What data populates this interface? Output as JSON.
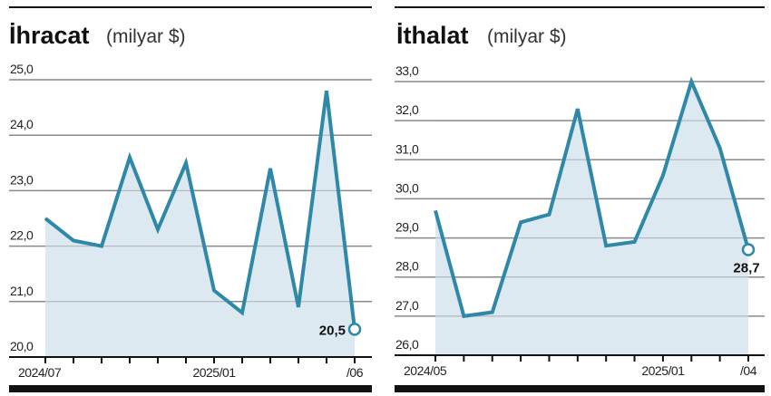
{
  "colors": {
    "line": "#2f88a8",
    "fill": "#d9e7ef",
    "grid": "#8a8a8a",
    "rule": "#111111"
  },
  "chart_data": [
    {
      "type": "area",
      "title": "İhracat",
      "unit": "(milyar $)",
      "x": [
        "2024/07",
        "2024/08",
        "2024/09",
        "2024/10",
        "2024/11",
        "2024/12",
        "2025/01",
        "2025/02",
        "2025/03",
        "2025/04",
        "2025/05",
        "2025/06"
      ],
      "values": [
        22.5,
        22.1,
        22.0,
        23.6,
        22.3,
        23.5,
        21.2,
        20.8,
        23.4,
        20.9,
        24.8,
        20.5
      ],
      "ylim": [
        20,
        25
      ],
      "yticks": [
        "20,0",
        "21,0",
        "22,0",
        "23,0",
        "24,0",
        "25,0"
      ],
      "xtick_labels": [
        {
          "index": 0,
          "label": "2024/07"
        },
        {
          "index": 6,
          "label": "2025/01"
        },
        {
          "index": 11,
          "label": "/06"
        }
      ],
      "last_label": "20,5",
      "grid": true
    },
    {
      "type": "area",
      "title": "İthalat",
      "unit": "(milyar $)",
      "x": [
        "2024/05",
        "2024/06",
        "2024/07",
        "2024/08",
        "2024/09",
        "2024/10",
        "2024/11",
        "2024/12",
        "2025/01",
        "2025/02",
        "2025/03",
        "2025/04"
      ],
      "values": [
        29.7,
        27.0,
        27.1,
        29.4,
        29.6,
        32.3,
        28.8,
        28.9,
        30.6,
        33.0,
        31.3,
        28.7
      ],
      "ylim": [
        26,
        33
      ],
      "yticks": [
        "26,0",
        "27,0",
        "28,0",
        "29,0",
        "30,0",
        "31,0",
        "32,0",
        "33,0"
      ],
      "xtick_labels": [
        {
          "index": 0,
          "label": "2024/05"
        },
        {
          "index": 8,
          "label": "2025/01"
        },
        {
          "index": 11,
          "label": "/04"
        }
      ],
      "last_label": "28,7",
      "grid": true
    }
  ]
}
